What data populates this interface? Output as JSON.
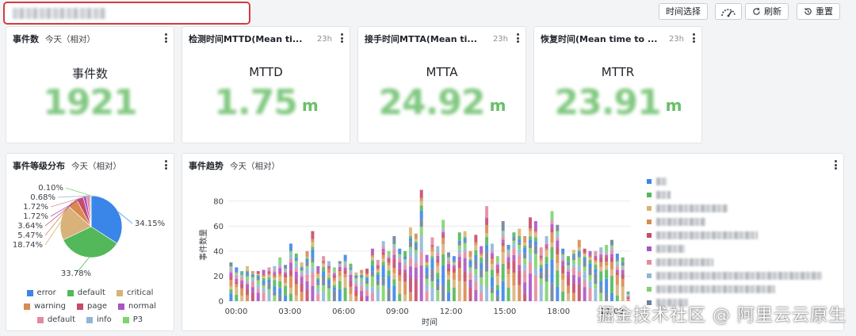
{
  "toolbar": {
    "time_select_label": "时间选择",
    "refresh_label": "刷新",
    "reset_label": "重置"
  },
  "stats": [
    {
      "title": "事件数",
      "sub": "今天（相对）",
      "badge": "",
      "label": "事件数",
      "value": "1921",
      "unit": ""
    },
    {
      "title": "检测时间MTTD(Mean ti...",
      "sub": "",
      "badge": "23h",
      "label": "MTTD",
      "value": "1.75",
      "unit": "m"
    },
    {
      "title": "接手时间MTTA(Mean ti...",
      "sub": "",
      "badge": "23h",
      "label": "MTTA",
      "value": "24.92",
      "unit": "m"
    },
    {
      "title": "恢复时间(Mean time to ...",
      "sub": "",
      "badge": "23h",
      "label": "MTTR",
      "value": "23.91",
      "unit": "m"
    }
  ],
  "pie_card": {
    "title": "事件等级分布",
    "sub": "今天（相对）",
    "legend": [
      {
        "label": "error",
        "color": "#3a86e8"
      },
      {
        "label": "default",
        "color": "#52b85a"
      },
      {
        "label": "critical",
        "color": "#d9b27a"
      },
      {
        "label": "warning",
        "color": "#d98a4f"
      },
      {
        "label": "page",
        "color": "#c64a6a"
      },
      {
        "label": "normal",
        "color": "#a855c7"
      },
      {
        "label": "default",
        "color": "#e58a9c"
      },
      {
        "label": "info",
        "color": "#8fb7d9"
      },
      {
        "label": "P3",
        "color": "#7fd36e"
      }
    ]
  },
  "trend_card": {
    "title": "事件趋势",
    "sub": "今天（相对）"
  },
  "chart_data": [
    {
      "type": "pie",
      "labels": [
        "error",
        "default",
        "critical",
        "warning",
        "page",
        "normal",
        "default",
        "info",
        "P3"
      ],
      "values": [
        34.15,
        33.78,
        18.74,
        5.47,
        3.64,
        1.72,
        1.72,
        0.68,
        0.1
      ],
      "value_labels": [
        "34.15%",
        "33.78%",
        "18.74%",
        "5.47%",
        "3.64%",
        "1.72%",
        "1.72%",
        "0.68%",
        "0.10%"
      ],
      "colors": [
        "#3a86e8",
        "#52b85a",
        "#d9b27a",
        "#d98a4f",
        "#c64a6a",
        "#a855c7",
        "#e58a9c",
        "#8fb7d9",
        "#7fd36e"
      ],
      "legend_position": "bottom"
    },
    {
      "type": "bar",
      "stacked": true,
      "xlabel": "时间",
      "ylabel": "事件数量",
      "ylim": [
        0,
        90
      ],
      "yticks": [
        0,
        20,
        40,
        60,
        80
      ],
      "xticks": [
        "00:00",
        "03:00",
        "06:00",
        "09:00",
        "12:00",
        "15:00",
        "18:00",
        "21:00"
      ],
      "grid": true,
      "legend_position": "right",
      "legend_colors": [
        "#3a86e8",
        "#52b85a",
        "#d9b27a",
        "#d98a4f",
        "#c64a6a",
        "#a855c7",
        "#e58a9c",
        "#8fb7d9",
        "#7fd36e",
        "#6f7f99"
      ],
      "totals": [
        31,
        27,
        24,
        28,
        24,
        24,
        25,
        27,
        28,
        35,
        29,
        46,
        38,
        31,
        40,
        56,
        28,
        36,
        32,
        27,
        32,
        37,
        30,
        23,
        25,
        26,
        42,
        33,
        48,
        40,
        52,
        42,
        40,
        59,
        54,
        89,
        37,
        51,
        44,
        65,
        39,
        36,
        55,
        56,
        40,
        53,
        44,
        76,
        46,
        36,
        64,
        45,
        55,
        58,
        52,
        67,
        64,
        43,
        52,
        72,
        61,
        42,
        36,
        41,
        49,
        42,
        40,
        40,
        43,
        45,
        49,
        38,
        35,
        8
      ]
    }
  ],
  "watermark": "掘金技术社区 @ 阿里云云原生"
}
